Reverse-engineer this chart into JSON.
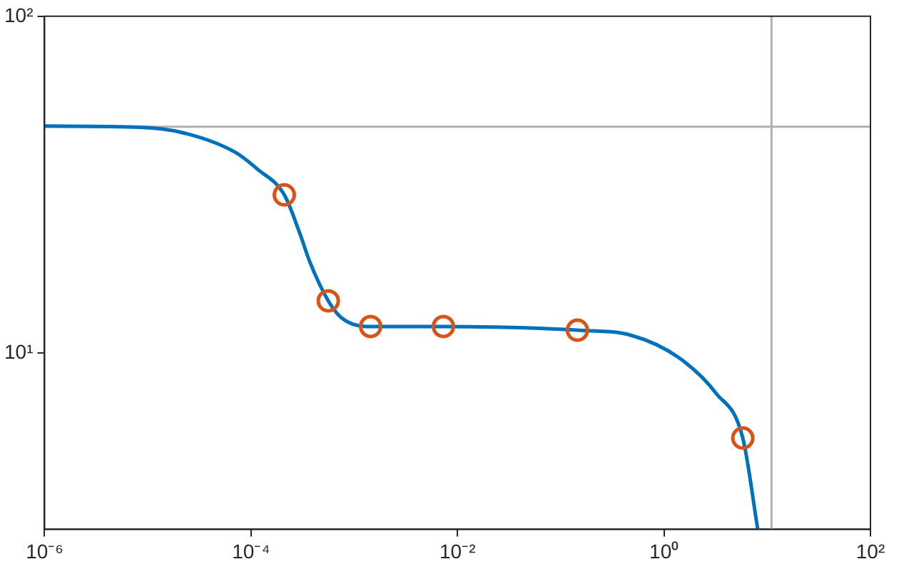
{
  "chart_data": {
    "type": "line",
    "log": "xy",
    "grid": false,
    "legend": false,
    "xlim": [
      1e-06,
      100
    ],
    "ylim": [
      3,
      100
    ],
    "xticks": [
      {
        "value": 1e-06,
        "label": "10⁻⁶"
      },
      {
        "value": 0.0001,
        "label": "10⁻⁴"
      },
      {
        "value": 0.01,
        "label": "10⁻²"
      },
      {
        "value": 1,
        "label": "10⁰"
      },
      {
        "value": 100,
        "label": "10²"
      }
    ],
    "yticks": [
      {
        "value": 10,
        "label": "10¹"
      },
      {
        "value": 100,
        "label": "10²"
      }
    ],
    "ref_lines": [
      {
        "axis": "y",
        "value": 47,
        "color": "#b0b0b0"
      },
      {
        "axis": "x",
        "value": 11,
        "color": "#b0b0b0"
      }
    ],
    "series": [
      {
        "type": "line",
        "color": "#0072bd",
        "marker": "none",
        "x": [
          1e-06,
          8.5e-06,
          2.4e-05,
          7e-05,
          0.000115,
          0.00021,
          0.000295,
          0.00037,
          0.00056,
          0.00076,
          0.00144,
          0.0073,
          0.145,
          0.48,
          1.39,
          3.2,
          5.8,
          8.1
        ],
        "values": [
          47.2,
          46.8,
          44.8,
          39.5,
          35.2,
          29.5,
          22.8,
          18.7,
          14.3,
          12.7,
          12.0,
          12.0,
          11.7,
          11.3,
          9.7,
          7.6,
          5.6,
          3.0
        ]
      },
      {
        "type": "scatter",
        "color": "#d95319",
        "marker": "circle",
        "x": [
          0.00021,
          0.00056,
          0.00144,
          0.0073,
          0.145,
          5.8
        ],
        "values": [
          29.5,
          14.3,
          12.0,
          12.0,
          11.7,
          5.6
        ]
      }
    ]
  }
}
